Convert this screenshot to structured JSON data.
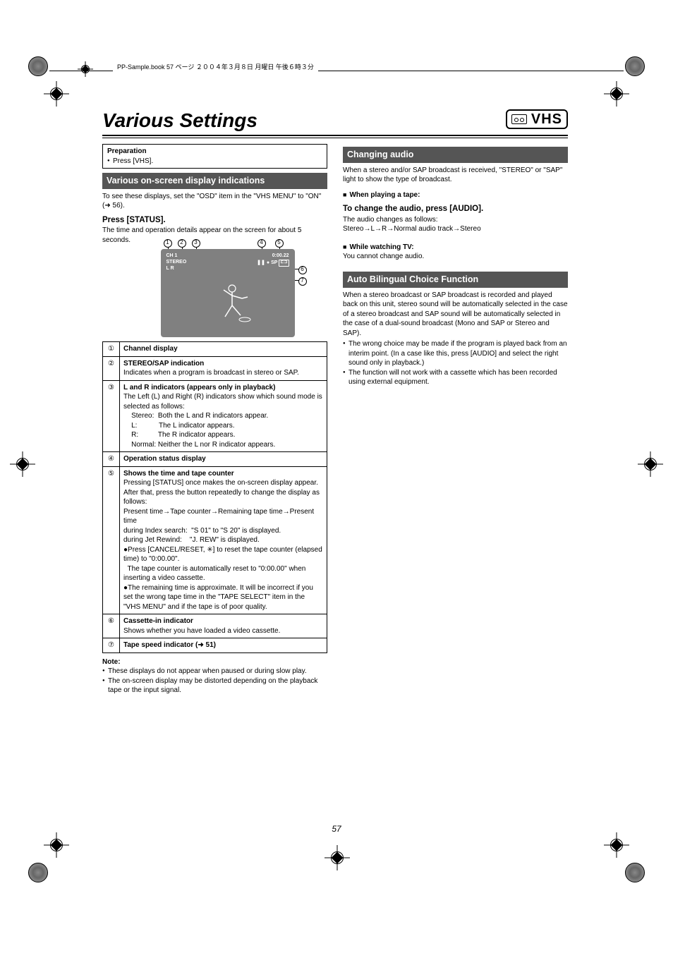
{
  "header": {
    "running_text": "PP-Sample.book  57 ページ  ２００４年３月８日  月曜日  午後６時３分"
  },
  "title": "Various Settings",
  "vhs_label": "VHS",
  "left": {
    "prep_title": "Preparation",
    "prep_item": "Press [VHS].",
    "section1": "Various on-screen display indications",
    "intro1": "To see these displays, set the \"OSD\" item in the \"VHS MENU\" to \"ON\" (",
    "intro1_ref": "56).",
    "press_status": "Press [STATUS].",
    "press_status_desc": "The time and operation details appear on the screen for about 5 seconds.",
    "osd": {
      "ch": "CH 1",
      "stereo": "STEREO",
      "lr": "L R",
      "time": "0:00.22",
      "sp": "SP",
      "pause": "❚❚",
      "rec": "●",
      "cassette": "⊏⊐"
    },
    "rows": [
      {
        "n": "①",
        "body": "<b>Channel display</b>"
      },
      {
        "n": "②",
        "body": "<b>STEREO/SAP indication</b><br>Indicates when a program is broadcast in stereo or SAP."
      },
      {
        "n": "③",
        "body": "<b>L and R indicators (appears only in playback)</b><br>The Left (L) and Right (R) indicators show which sound mode is selected as follows:<br>&nbsp;&nbsp;&nbsp;&nbsp;Stereo:&nbsp;&nbsp;Both the L and R indicators appear.<br>&nbsp;&nbsp;&nbsp;&nbsp;L:&nbsp;&nbsp;&nbsp;&nbsp;&nbsp;&nbsp;&nbsp;&nbsp;&nbsp;&nbsp;&nbsp;The L indicator appears.<br>&nbsp;&nbsp;&nbsp;&nbsp;R:&nbsp;&nbsp;&nbsp;&nbsp;&nbsp;&nbsp;&nbsp;&nbsp;&nbsp;&nbsp;The R indicator appears.<br>&nbsp;&nbsp;&nbsp;&nbsp;Normal:&nbsp;Neither the L nor R indicator appears."
      },
      {
        "n": "④",
        "body": "<b>Operation status display</b>"
      },
      {
        "n": "⑤",
        "body": "<b>Shows the time and tape counter</b><br>Pressing [STATUS] once makes the on-screen display appear. After that, press the button repeatedly to change the display as follows:<br>Present time→Tape counter→Remaining tape time→Present time<br>during Index search:&nbsp;&nbsp;\"S 01\" to \"S 20\" is displayed.<br>during Jet Rewind:&nbsp;&nbsp;&nbsp;&nbsp;\"J. REW\" is displayed.<br>●Press [CANCEL/RESET, ✳] to reset the tape counter (elapsed time) to \"0:00.00\".<br>&nbsp;&nbsp;The tape counter is automatically reset to \"0:00.00\" when inserting a video cassette.<br>●The remaining time is approximate. It will be incorrect if you set the wrong tape time in the \"TAPE SELECT\" item in the \"VHS MENU\" and if the tape is of poor quality."
      },
      {
        "n": "⑥",
        "body": "<b>Cassette-in indicator</b><br>Shows whether you have loaded a video cassette."
      },
      {
        "n": "⑦",
        "body": "<b>Tape speed indicator (➜ 51)</b>"
      }
    ],
    "note_title": "Note:",
    "notes": [
      "These displays do not appear when paused or during slow play.",
      "The on-screen display may be distorted depending on the playback tape or the input signal."
    ]
  },
  "right": {
    "section2": "Changing audio",
    "s2_intro": "When a stereo and/or SAP broadcast is received, \"STEREO\" or \"SAP\" light to show the type of broadcast.",
    "s2_h1": "When playing a tape:",
    "s2_action": "To change the audio, press [AUDIO].",
    "s2_l1": "The audio changes as follows:",
    "s2_seq": "Stereo→L→R→Normal audio track→Stereo",
    "s2_h2": "While watching TV:",
    "s2_l2": "You cannot change audio.",
    "section3": "Auto Bilingual Choice Function",
    "s3_p": "When a stereo broadcast or SAP broadcast is recorded and played back on this unit, stereo sound will be automatically selected in the case of a stereo broadcast and SAP sound will be automatically selected in the case of a dual-sound broadcast (Mono and SAP or Stereo and SAP).",
    "s3_bullets": [
      "The wrong choice may be made if the program is played back from an interim point. (In a case like this, press [AUDIO] and select the right sound only in playback.)",
      "The function will not work with a cassette which has been recorded using external equipment."
    ]
  },
  "page_number": "57"
}
